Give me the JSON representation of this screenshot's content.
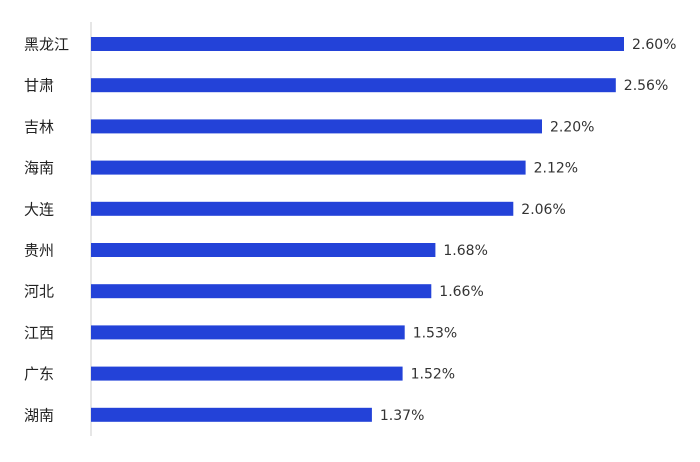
{
  "chart_data": {
    "type": "bar",
    "orientation": "horizontal",
    "categories": [
      "黑龙江",
      "甘肃",
      "吉林",
      "海南",
      "大连",
      "贵州",
      "河北",
      "江西",
      "广东",
      "湖南"
    ],
    "values": [
      2.6,
      2.56,
      2.2,
      2.12,
      2.06,
      1.68,
      1.66,
      1.53,
      1.52,
      1.37
    ],
    "value_labels": [
      "2.60%",
      "2.56%",
      "2.20%",
      "2.12%",
      "2.06%",
      "1.68%",
      "1.66%",
      "1.53%",
      "1.52%",
      "1.37%"
    ],
    "title": "",
    "xlabel": "",
    "ylabel": "",
    "xlim": [
      0,
      2.6
    ],
    "grid": false,
    "legend": "none",
    "colors": {
      "bar": "#2342d8",
      "axis": "#cccccc"
    }
  }
}
